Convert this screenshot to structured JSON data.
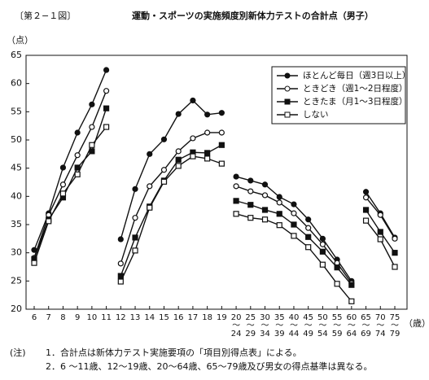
{
  "chart_data": {
    "type": "line",
    "figure_label": "〔第２−１図〕",
    "title": "運動・スポーツの実施頻度別新体力テストの合計点（男子）",
    "y_label": "（点）",
    "x_label": "（歳）",
    "categories": [
      "6",
      "7",
      "8",
      "9",
      "10",
      "11",
      "12",
      "13",
      "14",
      "15",
      "16",
      "17",
      "18",
      "19",
      "20\n〜\n24",
      "25\n〜\n29",
      "30\n〜\n34",
      "35\n〜\n39",
      "40\n〜\n44",
      "45\n〜\n49",
      "50\n〜\n54",
      "55\n〜\n59",
      "60\n〜\n64",
      "65\n〜\n69",
      "70\n〜\n74",
      "75\n〜\n79"
    ],
    "segment_starts": [
      6,
      14,
      23
    ],
    "ylim": [
      20,
      65
    ],
    "yticks": [
      20,
      25,
      30,
      35,
      40,
      45,
      50,
      55,
      60,
      65
    ],
    "legend_position": "upper right",
    "series": [
      {
        "name": "ほとんど毎日（週3日以上）",
        "color": "#111111",
        "marker": "circle",
        "filled": true,
        "values": [
          30.5,
          37.0,
          45.1,
          51.3,
          56.3,
          62.4,
          32.4,
          41.3,
          47.5,
          50.1,
          54.6,
          57.0,
          54.5,
          54.8,
          43.5,
          42.8,
          42.1,
          39.9,
          38.6,
          35.9,
          32.5,
          28.8,
          25.0,
          40.8,
          37.0,
          32.7
        ]
      },
      {
        "name": "ときどき（週1〜2日程度）",
        "color": "#111111",
        "marker": "circle",
        "filled": false,
        "values": [
          29.1,
          36.7,
          42.1,
          47.3,
          52.3,
          58.7,
          28.1,
          36.2,
          41.8,
          44.7,
          48.0,
          50.3,
          51.3,
          51.3,
          41.8,
          40.9,
          40.2,
          38.9,
          37.0,
          34.4,
          31.5,
          28.2,
          24.6,
          39.8,
          36.7,
          32.5
        ]
      },
      {
        "name": "ときたま（月1〜3日程度）",
        "color": "#111111",
        "marker": "square",
        "filled": true,
        "values": [
          28.9,
          35.9,
          39.8,
          45.1,
          48.0,
          55.6,
          25.9,
          32.7,
          38.2,
          42.8,
          46.5,
          47.8,
          47.7,
          49.1,
          39.2,
          38.5,
          37.6,
          36.9,
          35.0,
          32.8,
          30.2,
          27.4,
          24.3,
          37.6,
          33.7,
          30.0
        ]
      },
      {
        "name": "しない",
        "color": "#111111",
        "marker": "square",
        "filled": false,
        "values": [
          28.2,
          35.6,
          40.5,
          43.9,
          49.1,
          52.3,
          24.9,
          30.4,
          38.0,
          42.6,
          45.4,
          47.1,
          46.7,
          45.8,
          36.9,
          36.2,
          35.9,
          34.9,
          33.0,
          31.0,
          27.9,
          24.5,
          21.4,
          35.7,
          32.4,
          27.5
        ]
      }
    ]
  },
  "notes": {
    "label": "(注)",
    "items": [
      "1．合計点は新体力テスト実施要項の「項目別得点表」による。",
      "2．6 〜11歳、12〜19歳、20〜64歳、65〜79歳及び男女の得点基準は異なる。"
    ]
  }
}
